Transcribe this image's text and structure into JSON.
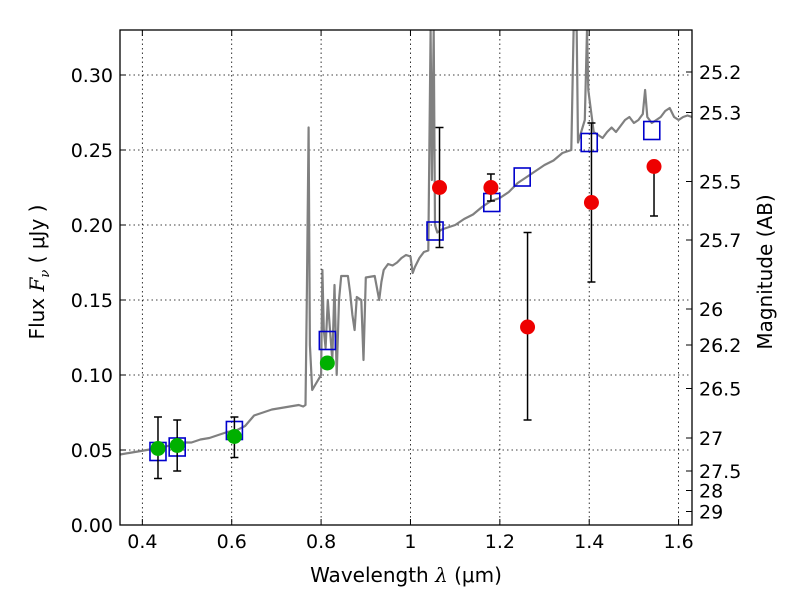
{
  "chart_data": {
    "type": "scatter",
    "xlabel_text": "Wavelength ",
    "xlabel_symbol": "λ",
    "xlabel_units": "(μm)",
    "ylabel_text": "Flux ",
    "ylabel_symbol": "F",
    "ylabel_sub": "ν",
    "ylabel_units": "( μJy )",
    "y2label": "Magnitude (AB)",
    "xlim": [
      0.35,
      1.63
    ],
    "ylim": [
      0.0,
      0.33
    ],
    "grid": true,
    "x_ticks": [
      0.4,
      0.6,
      0.8,
      1.0,
      1.2,
      1.4,
      1.6
    ],
    "x_tick_labels": [
      "0.4",
      "0.6",
      "0.8",
      "1",
      "1.2",
      "1.4",
      "1.6"
    ],
    "y_ticks": [
      0.0,
      0.05,
      0.1,
      0.15,
      0.2,
      0.25,
      0.3
    ],
    "y_tick_labels": [
      "0.00",
      "0.05",
      "0.10",
      "0.15",
      "0.20",
      "0.25",
      "0.30"
    ],
    "y2_ticks": [
      {
        "label": "25.2",
        "flux": 0.302
      },
      {
        "label": "25.3",
        "flux": 0.275
      },
      {
        "label": "25.5",
        "flux": 0.229
      },
      {
        "label": "25.7",
        "flux": 0.19
      },
      {
        "label": "26",
        "flux": 0.144
      },
      {
        "label": "26.2",
        "flux": 0.12
      },
      {
        "label": "26.5",
        "flux": 0.091
      },
      {
        "label": "27",
        "flux": 0.058
      },
      {
        "label": "27.5",
        "flux": 0.036
      },
      {
        "label": "28",
        "flux": 0.023
      },
      {
        "label": "29",
        "flux": 0.009
      }
    ],
    "series": [
      {
        "name": "model spectrum",
        "kind": "line",
        "color": "#808080",
        "points": [
          [
            0.35,
            0.047
          ],
          [
            0.37,
            0.048
          ],
          [
            0.39,
            0.049
          ],
          [
            0.41,
            0.05
          ],
          [
            0.43,
            0.051
          ],
          [
            0.45,
            0.052
          ],
          [
            0.47,
            0.054
          ],
          [
            0.49,
            0.055
          ],
          [
            0.51,
            0.055
          ],
          [
            0.53,
            0.057
          ],
          [
            0.55,
            0.058
          ],
          [
            0.57,
            0.06
          ],
          [
            0.59,
            0.062
          ],
          [
            0.61,
            0.063
          ],
          [
            0.63,
            0.066
          ],
          [
            0.65,
            0.073
          ],
          [
            0.67,
            0.075
          ],
          [
            0.69,
            0.077
          ],
          [
            0.71,
            0.078
          ],
          [
            0.73,
            0.079
          ],
          [
            0.75,
            0.08
          ],
          [
            0.76,
            0.079
          ],
          [
            0.765,
            0.08
          ],
          [
            0.768,
            0.15
          ],
          [
            0.772,
            0.265
          ],
          [
            0.775,
            0.12
          ],
          [
            0.78,
            0.09
          ],
          [
            0.79,
            0.095
          ],
          [
            0.8,
            0.1
          ],
          [
            0.803,
            0.17
          ],
          [
            0.806,
            0.13
          ],
          [
            0.81,
            0.118
          ],
          [
            0.815,
            0.15
          ],
          [
            0.82,
            0.13
          ],
          [
            0.825,
            0.11
          ],
          [
            0.83,
            0.16
          ],
          [
            0.835,
            0.1
          ],
          [
            0.84,
            0.15
          ],
          [
            0.845,
            0.166
          ],
          [
            0.86,
            0.166
          ],
          [
            0.865,
            0.155
          ],
          [
            0.87,
            0.14
          ],
          [
            0.875,
            0.13
          ],
          [
            0.88,
            0.152
          ],
          [
            0.89,
            0.15
          ],
          [
            0.895,
            0.11
          ],
          [
            0.9,
            0.165
          ],
          [
            0.92,
            0.166
          ],
          [
            0.93,
            0.15
          ],
          [
            0.935,
            0.162
          ],
          [
            0.94,
            0.17
          ],
          [
            0.95,
            0.174
          ],
          [
            0.96,
            0.173
          ],
          [
            0.97,
            0.175
          ],
          [
            0.98,
            0.178
          ],
          [
            0.99,
            0.18
          ],
          [
            1.0,
            0.179
          ],
          [
            1.005,
            0.168
          ],
          [
            1.01,
            0.172
          ],
          [
            1.02,
            0.178
          ],
          [
            1.03,
            0.182
          ],
          [
            1.04,
            0.183
          ],
          [
            1.045,
            0.33
          ],
          [
            1.048,
            0.23
          ],
          [
            1.052,
            0.33
          ],
          [
            1.055,
            0.2
          ],
          [
            1.06,
            0.195
          ],
          [
            1.07,
            0.197
          ],
          [
            1.08,
            0.198
          ],
          [
            1.1,
            0.2
          ],
          [
            1.12,
            0.204
          ],
          [
            1.14,
            0.207
          ],
          [
            1.16,
            0.212
          ],
          [
            1.18,
            0.216
          ],
          [
            1.2,
            0.218
          ],
          [
            1.22,
            0.222
          ],
          [
            1.24,
            0.228
          ],
          [
            1.26,
            0.232
          ],
          [
            1.28,
            0.236
          ],
          [
            1.3,
            0.24
          ],
          [
            1.32,
            0.243
          ],
          [
            1.34,
            0.248
          ],
          [
            1.36,
            0.25
          ],
          [
            1.365,
            0.33
          ],
          [
            1.372,
            0.33
          ],
          [
            1.375,
            0.255
          ],
          [
            1.39,
            0.27
          ],
          [
            1.395,
            0.33
          ],
          [
            1.398,
            0.29
          ],
          [
            1.41,
            0.262
          ],
          [
            1.42,
            0.26
          ],
          [
            1.43,
            0.258
          ],
          [
            1.44,
            0.262
          ],
          [
            1.45,
            0.265
          ],
          [
            1.46,
            0.262
          ],
          [
            1.47,
            0.266
          ],
          [
            1.48,
            0.27
          ],
          [
            1.49,
            0.272
          ],
          [
            1.5,
            0.268
          ],
          [
            1.51,
            0.27
          ],
          [
            1.52,
            0.274
          ],
          [
            1.525,
            0.29
          ],
          [
            1.53,
            0.272
          ],
          [
            1.54,
            0.268
          ],
          [
            1.55,
            0.27
          ],
          [
            1.56,
            0.272
          ],
          [
            1.57,
            0.276
          ],
          [
            1.58,
            0.278
          ],
          [
            1.59,
            0.272
          ],
          [
            1.6,
            0.27
          ],
          [
            1.61,
            0.272
          ],
          [
            1.62,
            0.273
          ],
          [
            1.63,
            0.272
          ]
        ]
      },
      {
        "name": "model photometry",
        "kind": "square",
        "color": "#0000cc",
        "points": [
          [
            0.435,
            0.049
          ],
          [
            0.478,
            0.052
          ],
          [
            0.606,
            0.063
          ],
          [
            0.814,
            0.123
          ],
          [
            1.055,
            0.196
          ],
          [
            1.182,
            0.215
          ],
          [
            1.25,
            0.232
          ],
          [
            1.4,
            0.255
          ],
          [
            1.54,
            0.263
          ]
        ]
      },
      {
        "name": "observed (green)",
        "kind": "point",
        "color": "#00b000",
        "points": [
          {
            "x": 0.435,
            "y": 0.051,
            "lo": 0.031,
            "hi": 0.072
          },
          {
            "x": 0.478,
            "y": 0.053,
            "lo": 0.036,
            "hi": 0.07
          },
          {
            "x": 0.606,
            "y": 0.059,
            "lo": 0.045,
            "hi": 0.072
          },
          {
            "x": 0.814,
            "y": 0.108,
            "lo": 0.108,
            "hi": 0.108
          }
        ]
      },
      {
        "name": "observed (red)",
        "kind": "point",
        "color": "#ee0000",
        "points": [
          {
            "x": 1.065,
            "y": 0.225,
            "lo": 0.185,
            "hi": 0.265
          },
          {
            "x": 1.18,
            "y": 0.225,
            "lo": 0.216,
            "hi": 0.234
          },
          {
            "x": 1.262,
            "y": 0.132,
            "lo": 0.07,
            "hi": 0.195
          },
          {
            "x": 1.405,
            "y": 0.215,
            "lo": 0.162,
            "hi": 0.268
          },
          {
            "x": 1.545,
            "y": 0.239,
            "lo": 0.206,
            "hi": 0.239
          }
        ]
      }
    ]
  }
}
